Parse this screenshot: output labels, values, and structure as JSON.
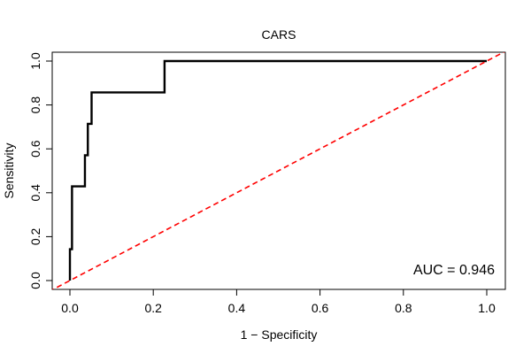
{
  "chart_data": {
    "type": "line",
    "title": "CARS",
    "xlabel": "1 − Specificity",
    "ylabel": "Sensitivity",
    "xlim": [
      0,
      1
    ],
    "ylim": [
      0,
      1
    ],
    "x_ticks": [
      "0.0",
      "0.2",
      "0.4",
      "0.6",
      "0.8",
      "1.0"
    ],
    "y_ticks": [
      "0.0",
      "0.2",
      "0.4",
      "0.6",
      "0.8",
      "1.0"
    ],
    "grid": false,
    "annotation": "AUC = 0.946",
    "series": [
      {
        "style": "solid",
        "color": "#000000",
        "points": [
          [
            0.0,
            0.0
          ],
          [
            0.0,
            0.143
          ],
          [
            0.005,
            0.143
          ],
          [
            0.005,
            0.429
          ],
          [
            0.036,
            0.429
          ],
          [
            0.036,
            0.571
          ],
          [
            0.043,
            0.571
          ],
          [
            0.043,
            0.714
          ],
          [
            0.052,
            0.714
          ],
          [
            0.052,
            0.857
          ],
          [
            0.227,
            0.857
          ],
          [
            0.227,
            1.0
          ],
          [
            1.0,
            1.0
          ]
        ]
      },
      {
        "style": "dashed",
        "color": "#ff0000",
        "points": [
          [
            -0.05,
            -0.05
          ],
          [
            1.05,
            1.05
          ]
        ]
      }
    ]
  }
}
